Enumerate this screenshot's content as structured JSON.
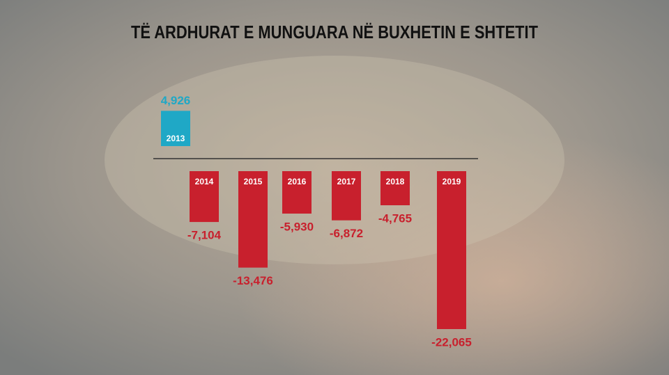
{
  "chart_data": {
    "type": "bar",
    "title": "TË ARDHURAT E MUNGUARA NË BUXHETIN E SHTETIT",
    "categories": [
      "2013",
      "2014",
      "2015",
      "2016",
      "2017",
      "2018",
      "2019"
    ],
    "values": [
      4926,
      -7104,
      -13476,
      -5930,
      -6872,
      -4765,
      -22065
    ],
    "value_labels": [
      "4,926",
      "-7,104",
      "-13,476",
      "-5,930",
      "-6,872",
      "-4,765",
      "-22,065"
    ],
    "colors": [
      "#1fa8c6",
      "#c8202d",
      "#c8202d",
      "#c8202d",
      "#c8202d",
      "#c8202d",
      "#c8202d"
    ]
  }
}
